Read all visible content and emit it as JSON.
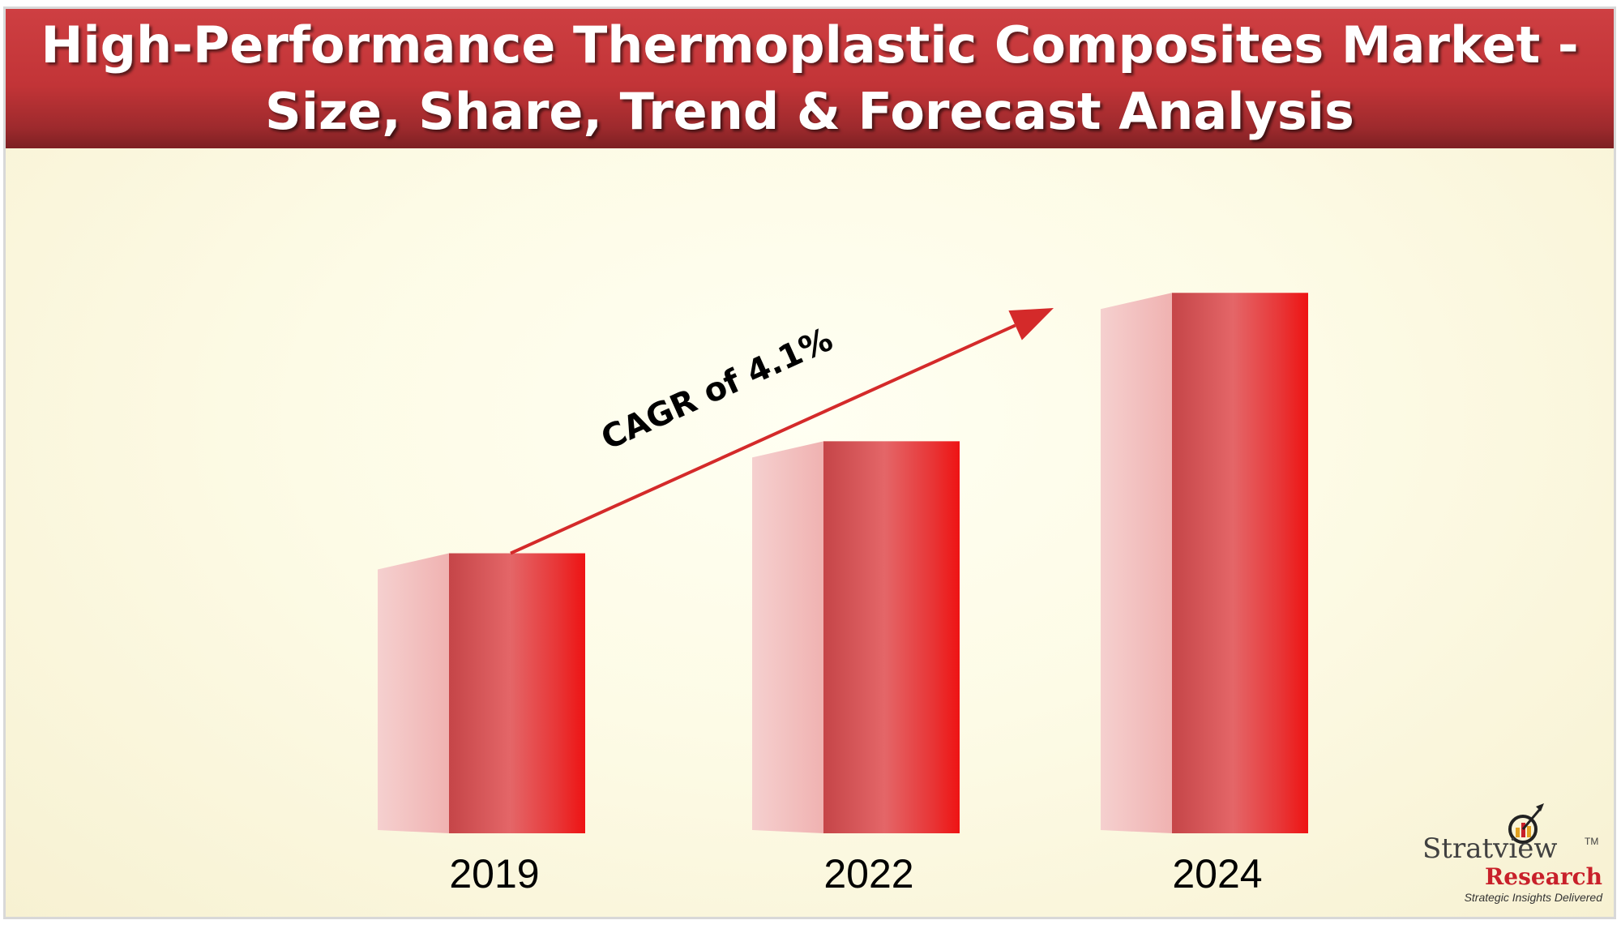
{
  "title": {
    "line1": "High-Performance Thermoplastic Composites Market  -",
    "line2": "Size, Share, Trend & Forecast Analysis"
  },
  "colors": {
    "bar_front_dark": "#c9474a",
    "bar_front_light": "#e46668",
    "bar_front_edge": "#ef1c1c",
    "bar_side": "#f4c0c0",
    "arrow": "#d42a2a"
  },
  "chart_data": {
    "type": "bar",
    "categories": [
      "2019",
      "2022",
      "2024"
    ],
    "values": [
      1.0,
      1.4,
      1.93
    ],
    "annotation": "CAGR of 4.1%",
    "ylim": [
      0,
      2.2
    ],
    "axes_visible": false,
    "grid": false,
    "style": "3d-bars"
  },
  "logo": {
    "name": "Stratview",
    "trademark": "TM",
    "name2": "Research",
    "tagline": "Strategic Insights Delivered",
    "icon": "target-arrow-icon"
  }
}
